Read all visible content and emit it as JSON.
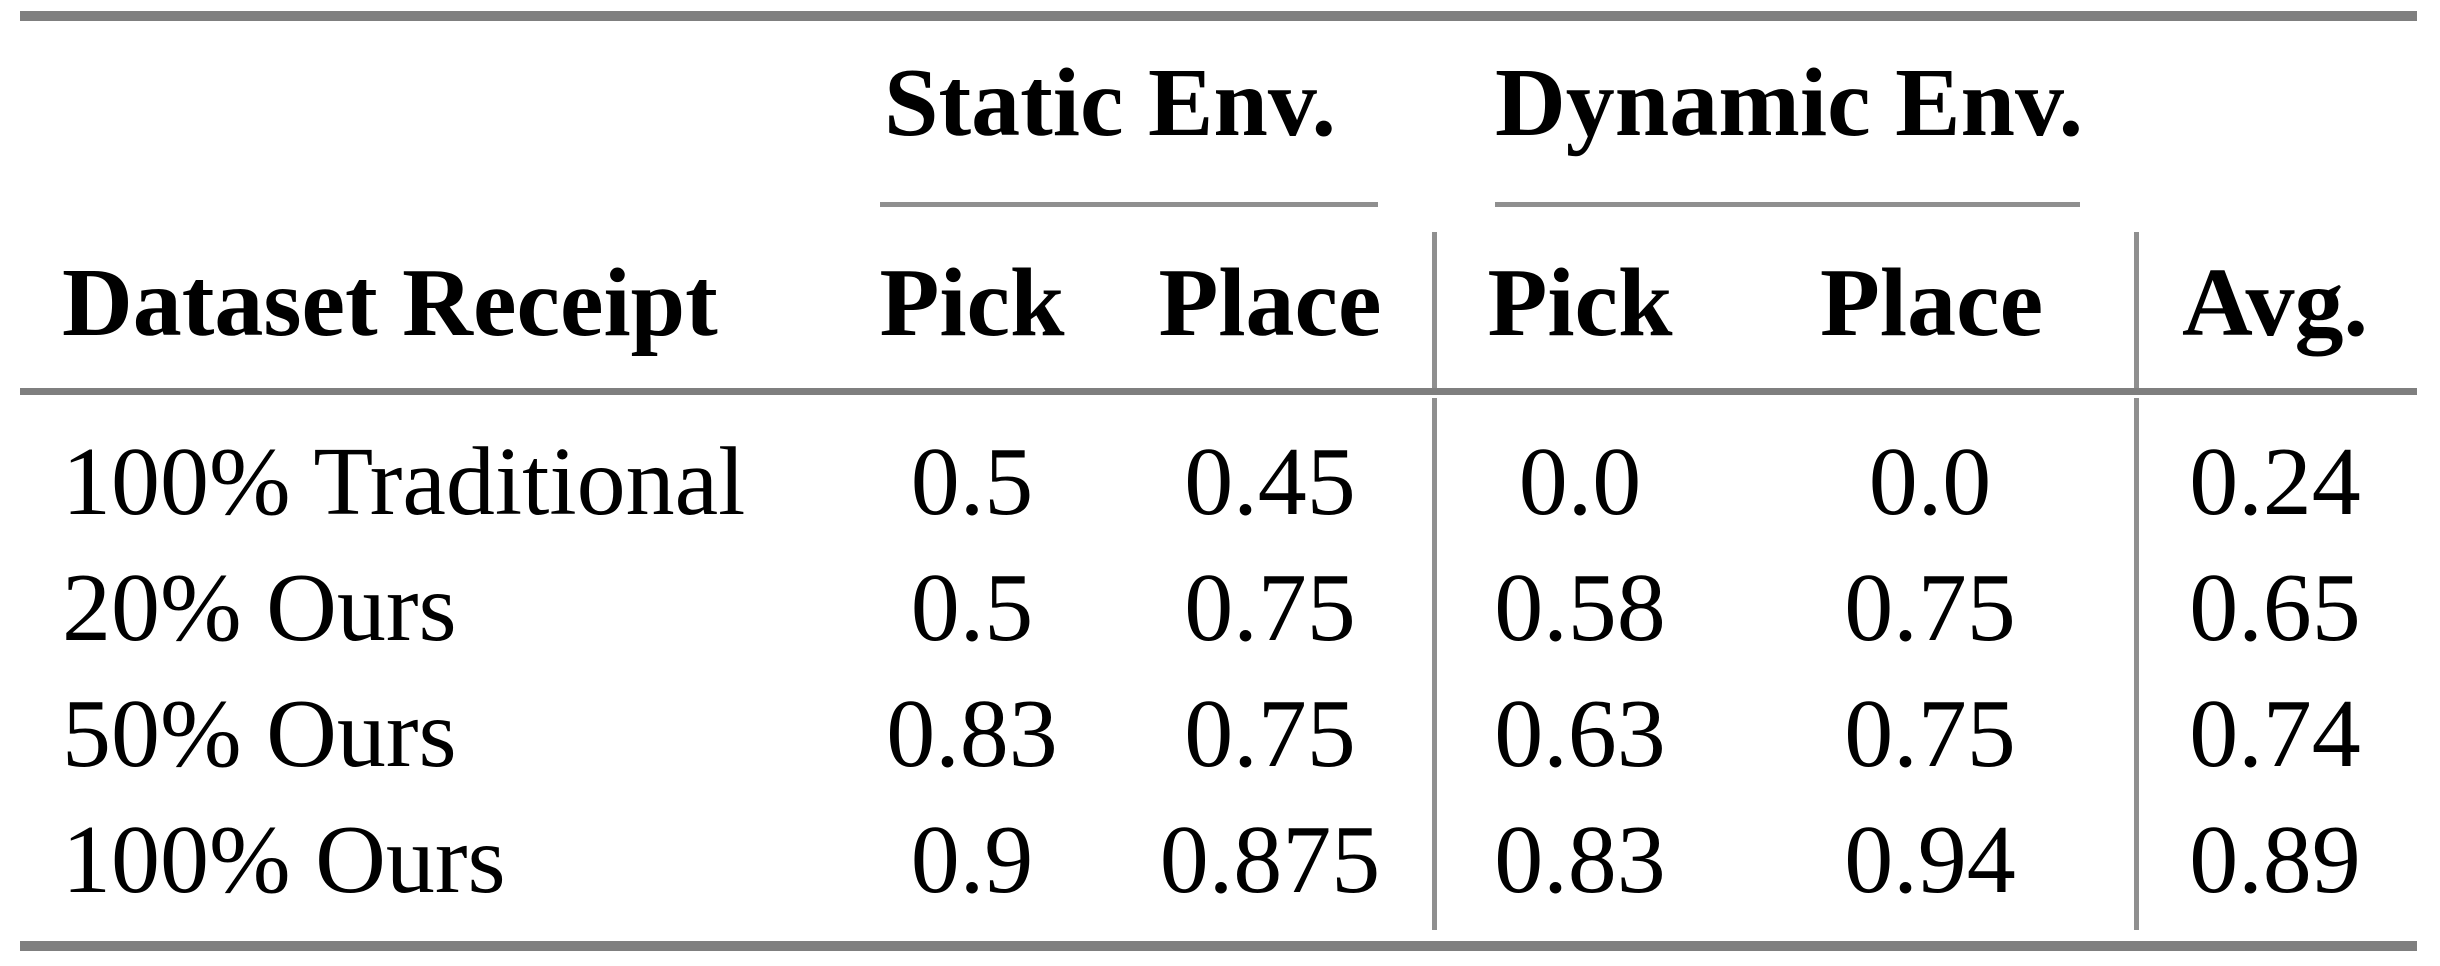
{
  "table": {
    "group_headers": [
      {
        "label": "Static Env."
      },
      {
        "label": "Dynamic Env."
      }
    ],
    "columns": {
      "row_header": "Dataset Receipt",
      "static_pick": "Pick",
      "static_place": "Place",
      "dynamic_pick": "Pick",
      "dynamic_place": "Place",
      "avg": "Avg."
    },
    "rows": [
      {
        "label": "100% Traditional",
        "values": [
          "0.5",
          "0.45",
          "0.0",
          "0.0",
          "0.24"
        ]
      },
      {
        "label": "20% Ours",
        "values": [
          "0.5",
          "0.75",
          "0.58",
          "0.75",
          "0.65"
        ]
      },
      {
        "label": "50% Ours",
        "values": [
          "0.83",
          "0.75",
          "0.63",
          "0.75",
          "0.74"
        ]
      },
      {
        "label": "100% Ours",
        "values": [
          "0.9",
          "0.875",
          "0.83",
          "0.94",
          "0.89"
        ]
      }
    ]
  },
  "chart_data": {
    "type": "table",
    "title": "",
    "column_groups": [
      "Static Env.",
      "Dynamic Env."
    ],
    "columns": [
      "Dataset Receipt",
      "Static Env. Pick",
      "Static Env. Place",
      "Dynamic Env. Pick",
      "Dynamic Env. Place",
      "Avg."
    ],
    "rows": [
      [
        "100% Traditional",
        0.5,
        0.45,
        0.0,
        0.0,
        0.24
      ],
      [
        "20% Ours",
        0.5,
        0.75,
        0.58,
        0.75,
        0.65
      ],
      [
        "50% Ours",
        0.83,
        0.75,
        0.63,
        0.75,
        0.74
      ],
      [
        "100% Ours",
        0.9,
        0.875,
        0.83,
        0.94,
        0.89
      ]
    ]
  },
  "colors": {
    "rule_heavy": "#7f7f7f",
    "rule_light": "#8f8f8f",
    "text": "#000000",
    "bg": "#ffffff"
  }
}
